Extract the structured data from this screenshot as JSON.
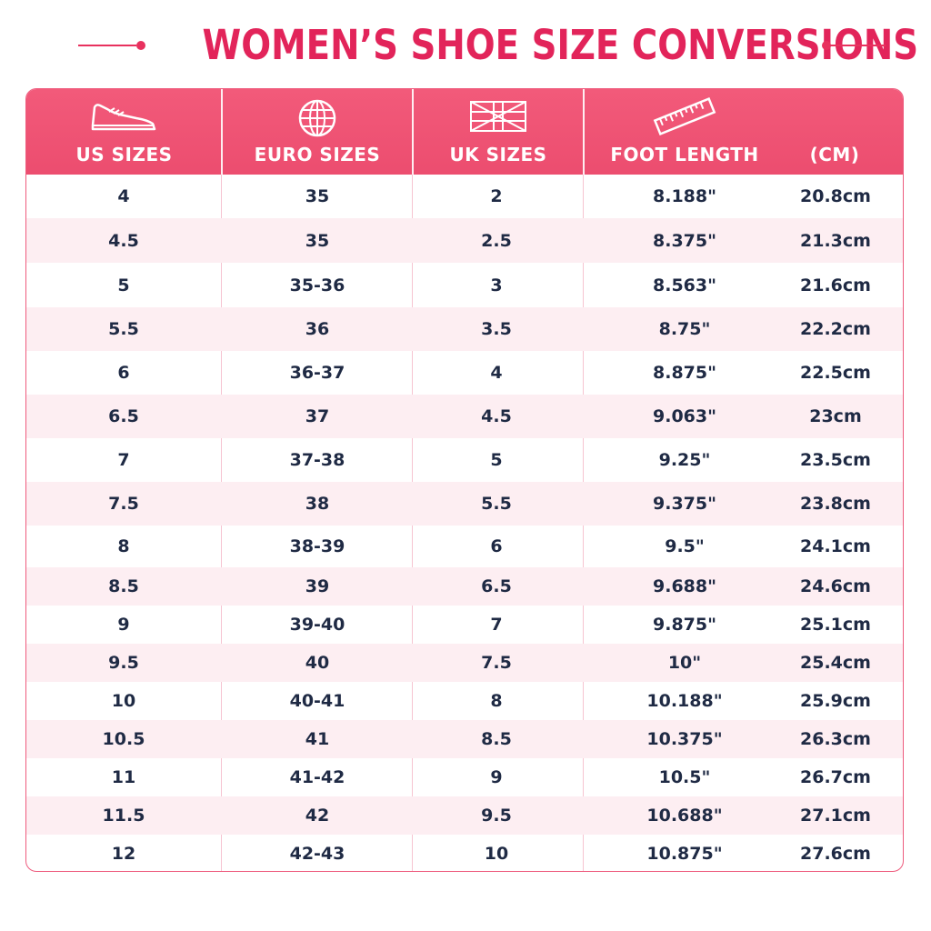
{
  "title": "WOMEN’S SHOE SIZE CONVERSIONS",
  "colors": {
    "accent": "#e8315e",
    "header_bg": "#ef5375",
    "row_alt": "#fdeef2",
    "text": "#1f2a44"
  },
  "columns": [
    {
      "label": "US SIZES",
      "icon": "shoe-icon"
    },
    {
      "label": "EURO SIZES",
      "icon": "globe-icon"
    },
    {
      "label": "UK SIZES",
      "icon": "uk-flag-icon"
    },
    {
      "label": "FOOT LENGTH",
      "icon": "ruler-icon"
    },
    {
      "label": "(CM)",
      "icon": ""
    }
  ],
  "rows": [
    [
      "4",
      "35",
      "2",
      "8.188\"",
      "20.8cm"
    ],
    [
      "4.5",
      "35",
      "2.5",
      "8.375\"",
      "21.3cm"
    ],
    [
      "5",
      "35-36",
      "3",
      "8.563\"",
      "21.6cm"
    ],
    [
      "5.5",
      "36",
      "3.5",
      "8.75\"",
      "22.2cm"
    ],
    [
      "6",
      "36-37",
      "4",
      "8.875\"",
      "22.5cm"
    ],
    [
      "6.5",
      "37",
      "4.5",
      "9.063\"",
      "23cm"
    ],
    [
      "7",
      "37-38",
      "5",
      "9.25\"",
      "23.5cm"
    ],
    [
      "7.5",
      "38",
      "5.5",
      "9.375\"",
      "23.8cm"
    ],
    [
      "8",
      "38-39",
      "6",
      "9.5\"",
      "24.1cm"
    ],
    [
      "8.5",
      "39",
      "6.5",
      "9.688\"",
      "24.6cm"
    ],
    [
      "9",
      "39-40",
      "7",
      "9.875\"",
      "25.1cm"
    ],
    [
      "9.5",
      "40",
      "7.5",
      "10\"",
      "25.4cm"
    ],
    [
      "10",
      "40-41",
      "8",
      "10.188\"",
      "25.9cm"
    ],
    [
      "10.5",
      "41",
      "8.5",
      "10.375\"",
      "26.3cm"
    ],
    [
      "11",
      "41-42",
      "9",
      "10.5\"",
      "26.7cm"
    ],
    [
      "11.5",
      "42",
      "9.5",
      "10.688\"",
      "27.1cm"
    ],
    [
      "12",
      "42-43",
      "10",
      "10.875\"",
      "27.6cm"
    ]
  ]
}
